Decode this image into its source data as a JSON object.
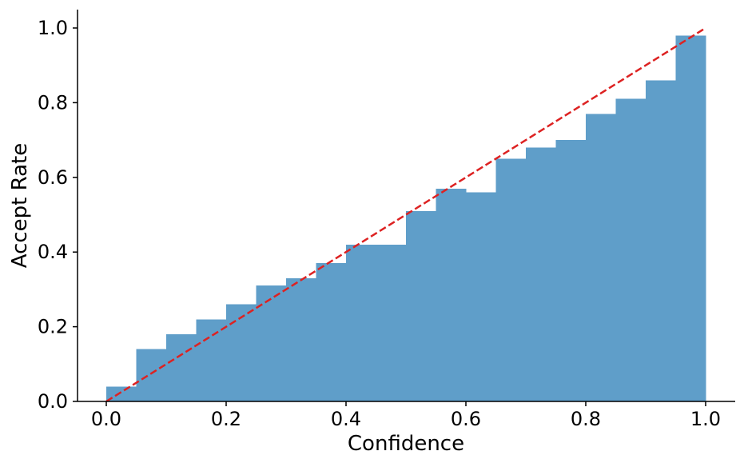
{
  "chart_data": {
    "type": "bar",
    "title": "",
    "xlabel": "Confidence",
    "ylabel": "Accept Rate",
    "xlim": [
      -0.05,
      1.05
    ],
    "ylim": [
      0,
      1.05
    ],
    "xticks": [
      "0.0",
      "0.2",
      "0.4",
      "0.6",
      "0.8",
      "1.0"
    ],
    "yticks": [
      "0.0",
      "0.2",
      "0.4",
      "0.6",
      "0.8",
      "1.0"
    ],
    "bin_width": 0.05,
    "bin_starts": [
      0.0,
      0.05,
      0.1,
      0.15,
      0.2,
      0.25,
      0.3,
      0.35,
      0.4,
      0.45,
      0.5,
      0.55,
      0.6,
      0.65,
      0.7,
      0.75,
      0.8,
      0.85,
      0.9,
      0.95
    ],
    "values": [
      0.04,
      0.14,
      0.18,
      0.22,
      0.26,
      0.31,
      0.33,
      0.37,
      0.42,
      0.42,
      0.51,
      0.57,
      0.56,
      0.65,
      0.68,
      0.7,
      0.77,
      0.81,
      0.86,
      0.98
    ],
    "bar_color": "#5f9ec9",
    "reference_line": {
      "from": [
        0,
        0
      ],
      "to": [
        1,
        1
      ],
      "color": "#dd2222",
      "style": "dashed"
    },
    "grid": false,
    "spines": [
      "left",
      "bottom"
    ]
  }
}
